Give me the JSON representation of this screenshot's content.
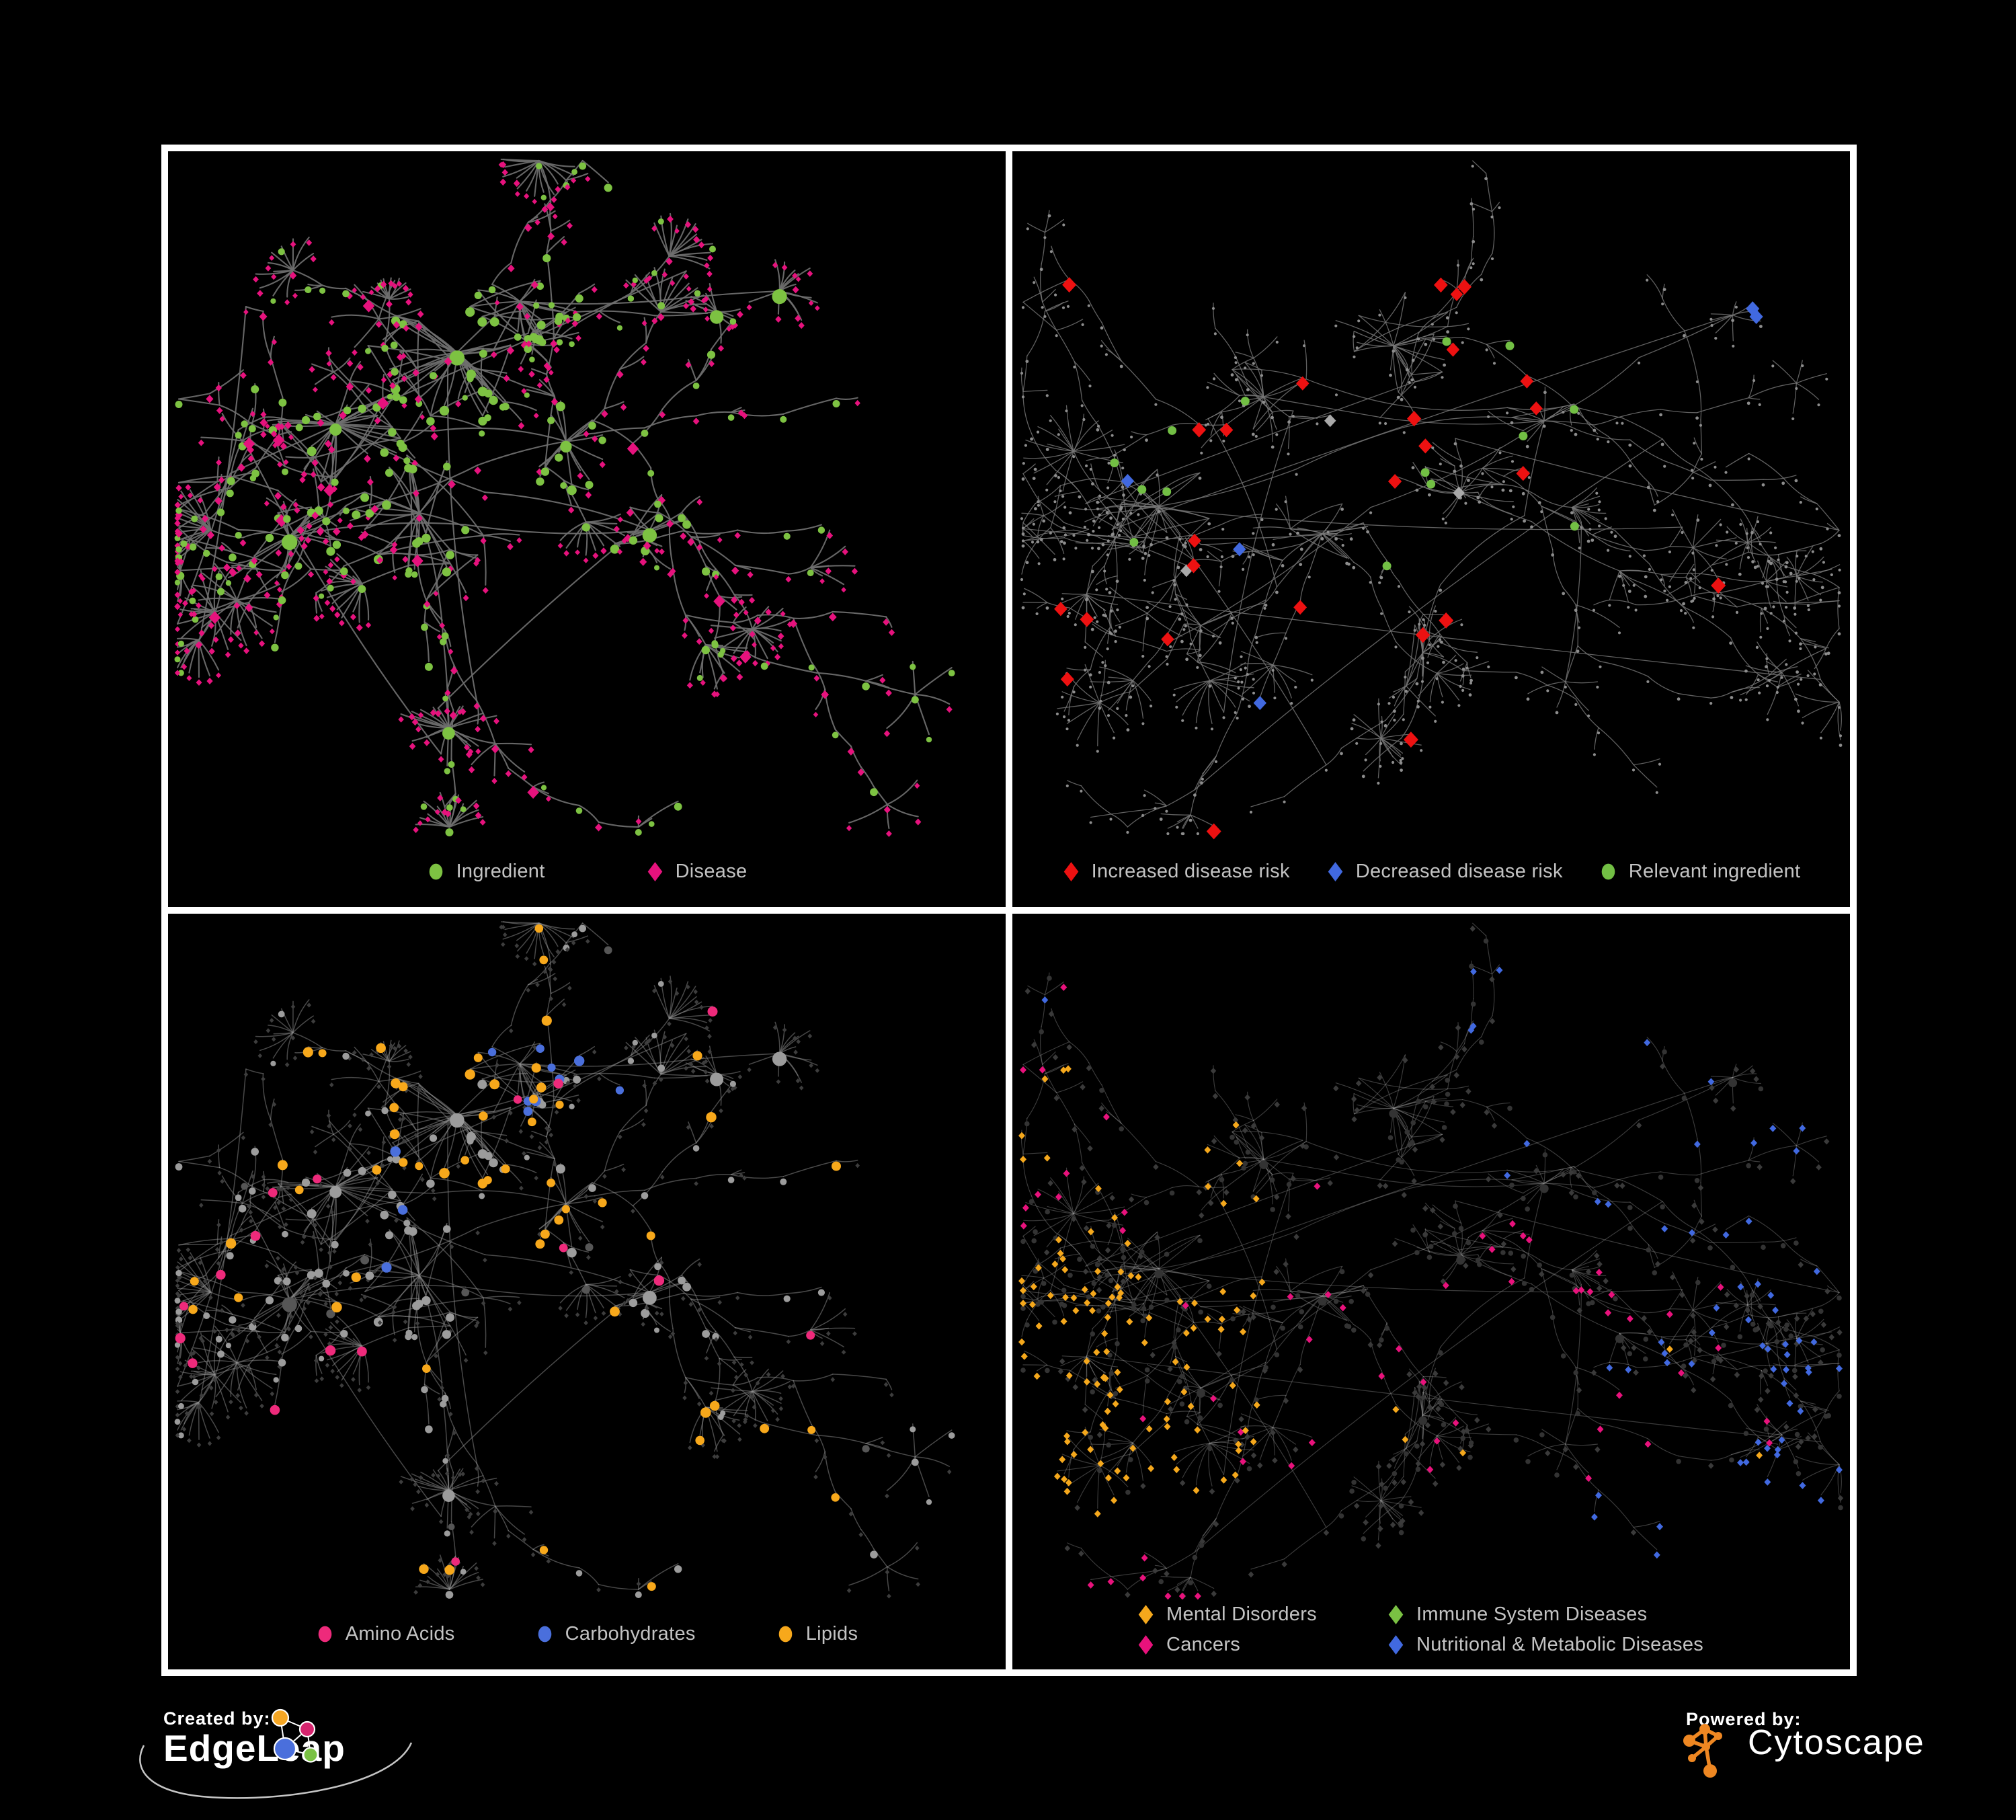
{
  "figure": {
    "background": "#000000",
    "frame_color": "#ffffff",
    "panel_background": "#000000",
    "legend_text_color": "#c3c3c3"
  },
  "panels": [
    {
      "id": "ingredient-disease-network",
      "position": "top-left",
      "net": "A",
      "style": "p1",
      "legend_gap": "gap-wide",
      "legend": [
        {
          "shape": "ellipse",
          "color": "#7dc242",
          "label": "Ingredient"
        },
        {
          "shape": "diamond",
          "color": "#e6127d",
          "label": "Disease"
        }
      ]
    },
    {
      "id": "disease-risk-network",
      "position": "top-right",
      "net": "B",
      "style": "p2",
      "legend_gap": "gap-narrow",
      "legend": [
        {
          "shape": "diamond",
          "color": "#ed1111",
          "label": "Increased disease risk"
        },
        {
          "shape": "diamond",
          "color": "#4169e0",
          "label": "Decreased disease risk"
        },
        {
          "shape": "ellipse",
          "color": "#72bf44",
          "label": "Relevant ingredient"
        }
      ]
    },
    {
      "id": "nutrient-class-network",
      "position": "bottom-left",
      "net": "A",
      "style": "p3",
      "legend_gap": "gap-mid",
      "legend": [
        {
          "shape": "ellipse",
          "color": "#ee2a7b",
          "label": "Amino Acids"
        },
        {
          "shape": "ellipse",
          "color": "#4a6fdc",
          "label": "Carbohydrates"
        },
        {
          "shape": "ellipse",
          "color": "#f7a81b",
          "label": "Lipids"
        }
      ]
    },
    {
      "id": "disease-class-network",
      "position": "bottom-right",
      "net": "B",
      "style": "p4",
      "legend_rows": [
        [
          {
            "shape": "diamond",
            "color": "#f5a81c",
            "label": "Mental Disorders"
          },
          {
            "shape": "diamond",
            "color": "#7ac143",
            "label": "Immune System Diseases"
          }
        ],
        [
          {
            "shape": "diamond",
            "color": "#e8127c",
            "label": "Cancers"
          },
          {
            "shape": "diamond",
            "color": "#4169e0",
            "label": "Nutritional & Metabolic Diseases"
          }
        ]
      ]
    }
  ],
  "palette": {
    "p1": {
      "edge": "#6f6f6f",
      "edge_w": 2.1,
      "edge_o": 0.92,
      "ingredient": "#7dc242",
      "disease": "#e6127d"
    },
    "p2": {
      "edge": "#787878",
      "edge_w": 1.3,
      "edge_o": 0.8,
      "base": "#8d8d8d",
      "increased": "#ed1111",
      "decreased": "#4169e0",
      "neutral": "#a9a9a9",
      "relevant": "#72bf44"
    },
    "p3": {
      "edge": "#8f8f8f",
      "edge_w": 1.5,
      "edge_o": 0.5,
      "base_circle": "#9c9c9c",
      "dark_circle": "#565656",
      "disease": "#3d3d3d",
      "amino": "#ee2a7b",
      "carb": "#4a6fdc",
      "lipid": "#f7a81b"
    },
    "p4": {
      "edge": "#9c9c9c",
      "edge_w": 1.15,
      "edge_o": 0.38,
      "base_diamond": "#3a3a3a",
      "base_circle": "#333333",
      "mental": "#f5a81c",
      "immune": "#7ac143",
      "cancer": "#e8127c",
      "nutritional": "#4169e0"
    }
  },
  "networks": {
    "A": {
      "seed": 41,
      "seedTag": 1,
      "clusters": [
        [
          0.2,
          0.4,
          24,
          95
        ],
        [
          0.345,
          0.295,
          30,
          105
        ],
        [
          0.3,
          0.53,
          22,
          90
        ],
        [
          0.145,
          0.565,
          12,
          60
        ],
        [
          0.475,
          0.425,
          15,
          70
        ],
        [
          0.42,
          0.22,
          16,
          62
        ],
        [
          0.575,
          0.555,
          9,
          50
        ]
      ],
      "ingBoost": {
        "1": 0.78,
        "4": 0.62,
        "5": 0.8
      },
      "link": 0.38,
      "branches": 44,
      "maxLen": 6,
      "fanProb": 0.5,
      "fanK": 11,
      "cross": 8,
      "bursts": [
        {
          "f": [
            0.335,
            0.845
          ],
          "k": 22,
          "rad": 62
        },
        {
          "f": [
            0.73,
            0.205
          ],
          "k": 12,
          "rad": 48
        },
        {
          "f": [
            0.655,
            0.235
          ],
          "k": 10,
          "rad": 44
        }
      ]
    },
    "B": {
      "seed": 77,
      "seedTag": 2,
      "clusters": [
        [
          0.175,
          0.52,
          18,
          80
        ],
        [
          0.3,
          0.36,
          16,
          70
        ],
        [
          0.455,
          0.285,
          22,
          85
        ],
        [
          0.37,
          0.56,
          14,
          65
        ],
        [
          0.535,
          0.5,
          13,
          60
        ],
        [
          0.225,
          0.695,
          9,
          48
        ],
        [
          0.635,
          0.395,
          9,
          48
        ],
        [
          0.49,
          0.735,
          10,
          50
        ],
        [
          0.725,
          0.615,
          7,
          40
        ]
      ],
      "ingBoost": {
        "2": 0.6
      },
      "link": 0.3,
      "branches": 56,
      "maxLen": 7,
      "fanProb": 0.42,
      "fanK": 10,
      "cross": 12,
      "bursts": [
        {
          "f": [
            0.44,
            0.86
          ],
          "k": 16,
          "rad": 55
        },
        {
          "f": [
            0.86,
            0.24
          ],
          "k": 8,
          "rad": 40
        }
      ]
    }
  },
  "footer": {
    "created_by_label": "Created by:",
    "created_by_brand": "EdgeLeap",
    "powered_by_label": "Powered by:",
    "powered_by_brand": "Cytoscape",
    "edgeleap_colors": {
      "orange": "#f5a623",
      "magenta": "#d6246e",
      "blue": "#4a6fdc",
      "green": "#7ac143"
    },
    "cytoscape_color": "#ee8722"
  }
}
